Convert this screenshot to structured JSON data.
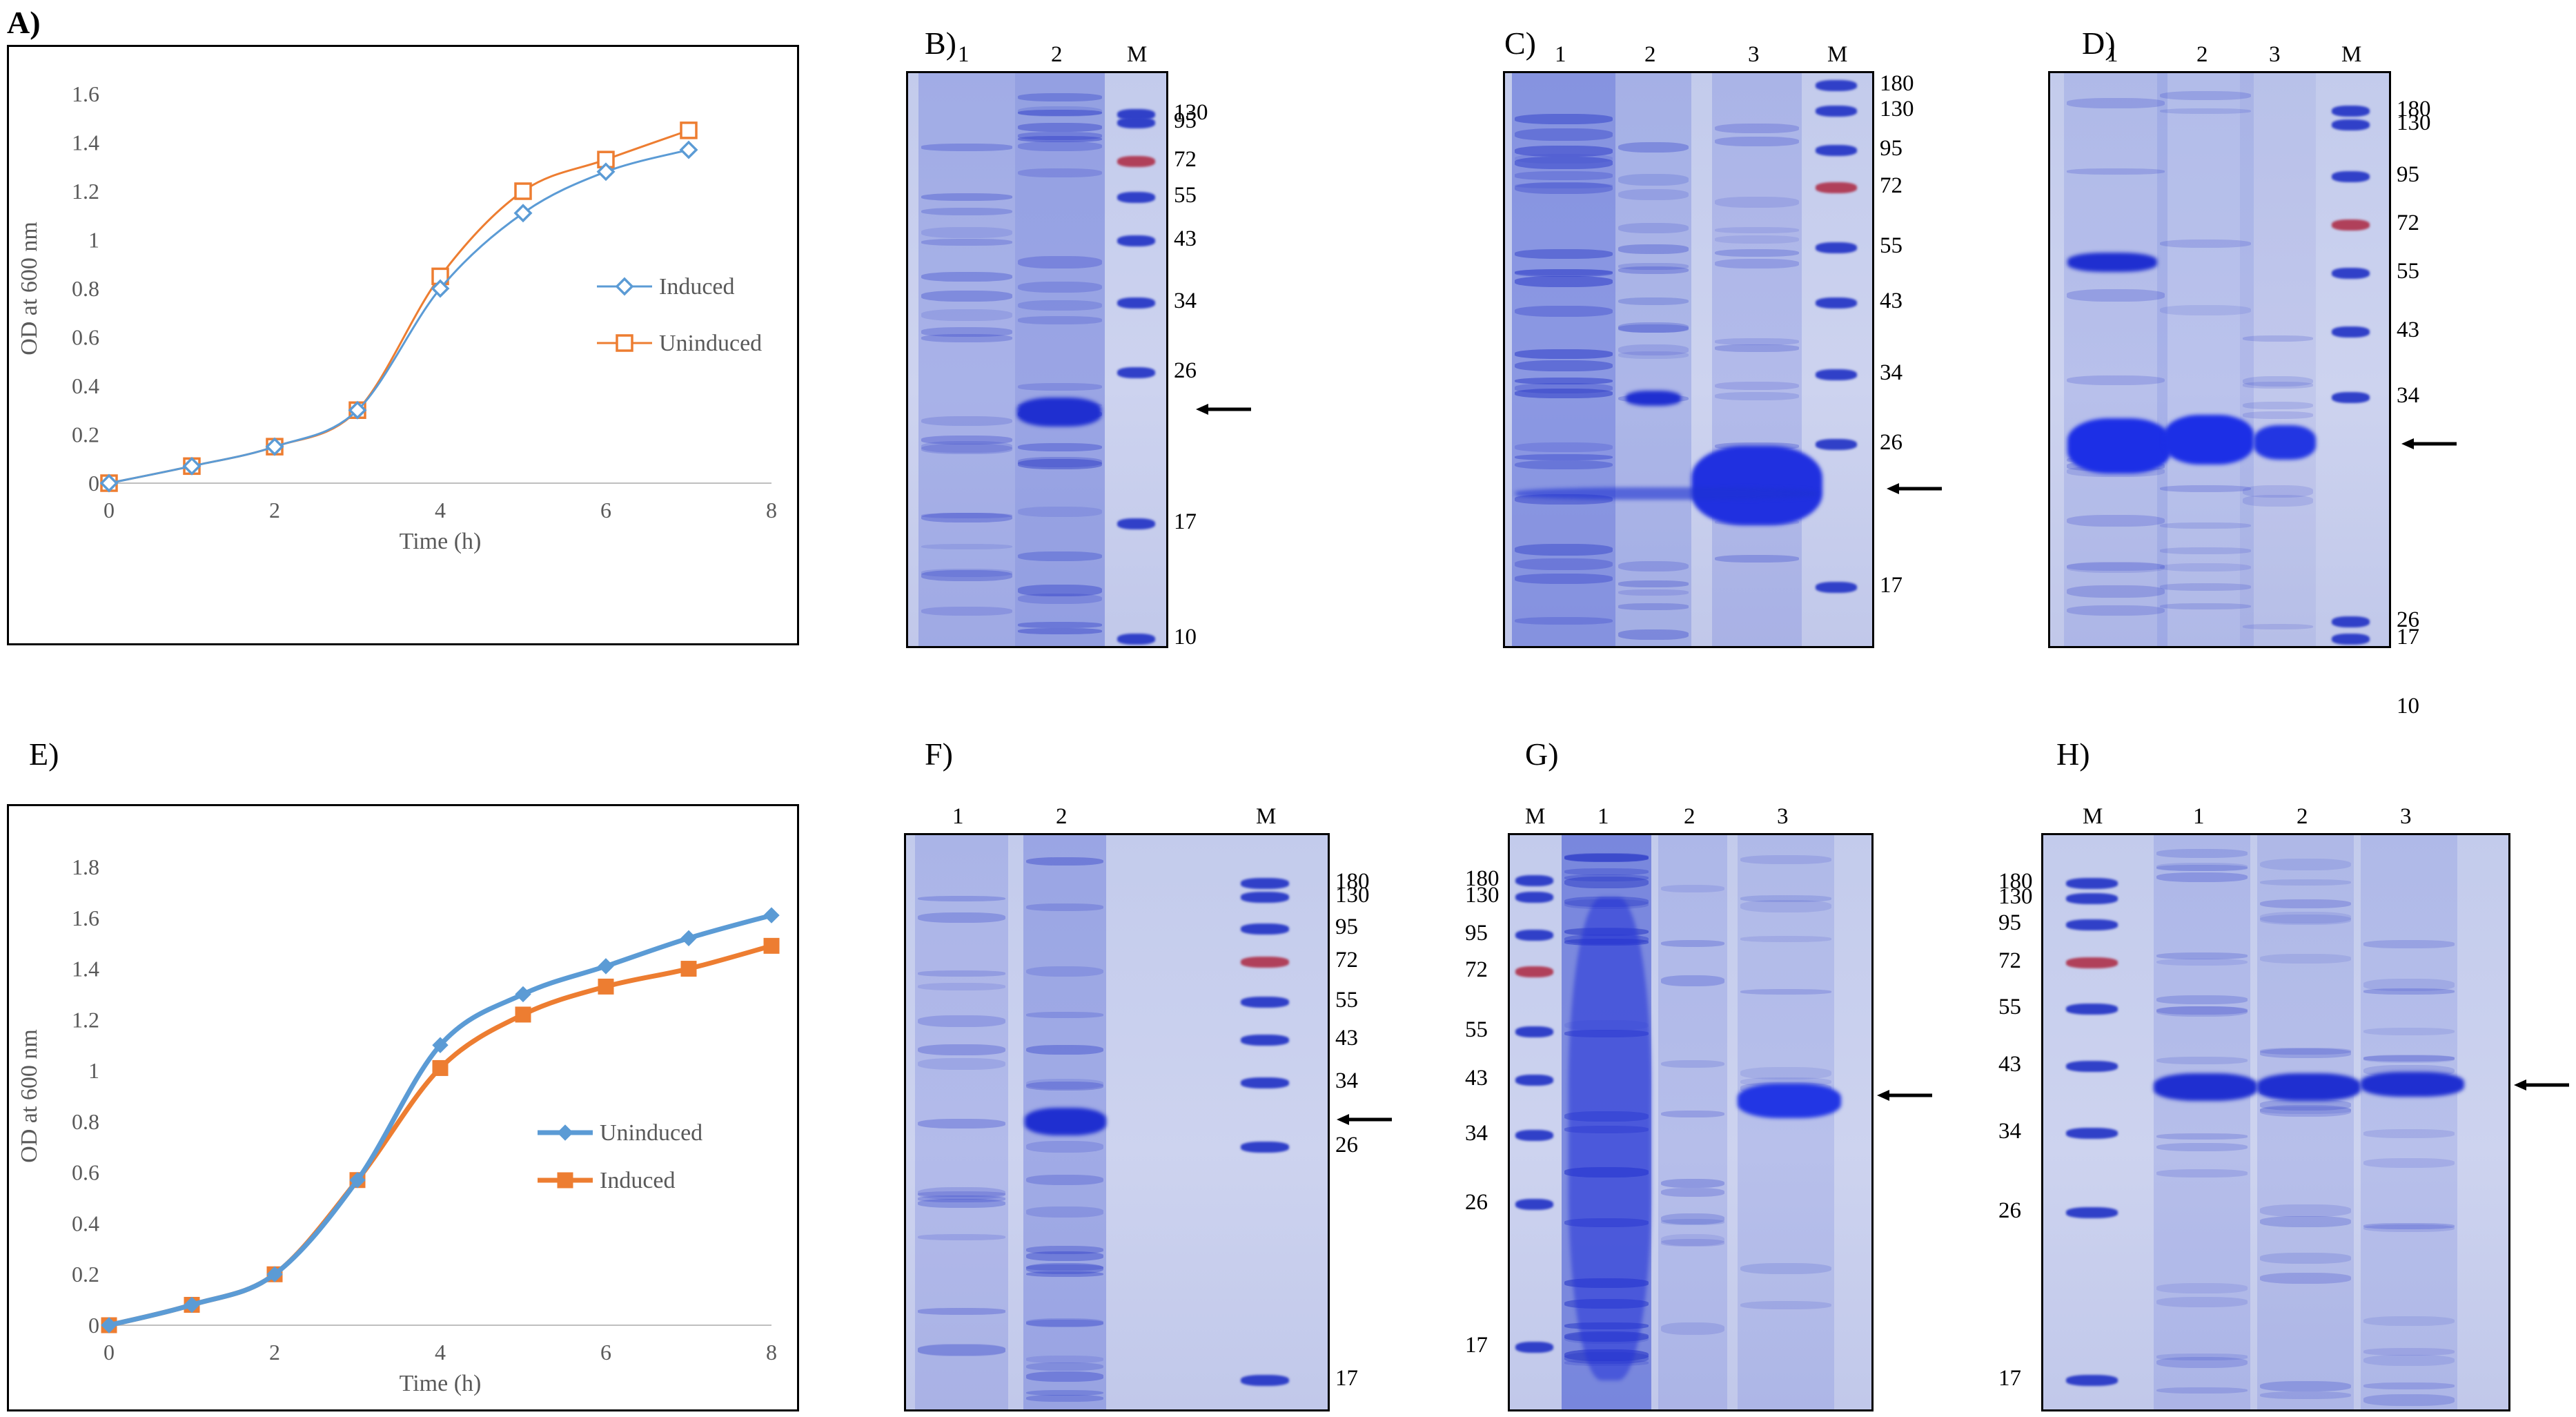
{
  "panels": [
    {
      "id": "A",
      "letter": "A)"
    },
    {
      "id": "B",
      "letter": "B)",
      "lanes": [
        "1",
        "2",
        "M"
      ],
      "markers": [
        "130",
        "95",
        "72",
        "55",
        "43",
        "34",
        "26",
        "17",
        "10"
      ]
    },
    {
      "id": "C",
      "letter": "C)",
      "lanes": [
        "1",
        "2",
        "3",
        "M"
      ],
      "markers": [
        "180",
        "130",
        "95",
        "72",
        "55",
        "43",
        "34",
        "26",
        "17"
      ]
    },
    {
      "id": "D",
      "letter": "D)",
      "lanes": [
        "1",
        "2",
        "3",
        "M"
      ],
      "markers": [
        "180",
        "130",
        "95",
        "72",
        "55",
        "43",
        "34",
        "26",
        "17",
        "10"
      ]
    },
    {
      "id": "E",
      "letter": "E)"
    },
    {
      "id": "F",
      "letter": "F)",
      "lanes": [
        "1",
        "2",
        "M"
      ],
      "markers": [
        "180",
        "130",
        "95",
        "72",
        "55",
        "43",
        "34",
        "26",
        "17"
      ]
    },
    {
      "id": "G",
      "letter": "G)",
      "lanes": [
        "M",
        "1",
        "2",
        "3"
      ],
      "markers": [
        "180",
        "130",
        "95",
        "72",
        "55",
        "43",
        "34",
        "26",
        "17"
      ]
    },
    {
      "id": "H",
      "letter": "H)",
      "lanes": [
        "M",
        "1",
        "2",
        "3"
      ],
      "markers": [
        "180",
        "130",
        "95",
        "72",
        "55",
        "43",
        "34",
        "26",
        "17"
      ]
    }
  ],
  "colors": {
    "induced_A": "#5B9BD5",
    "uninduced_A": "#ED7D31",
    "uninduced_E": "#5B9BD5",
    "induced_E": "#ED7D31",
    "gel_background": "#c9d0ec",
    "stain": "#3a4ed0"
  },
  "chart_data": [
    {
      "panel": "A",
      "type": "line",
      "xlabel": "Time (h)",
      "ylabel": "OD at 600 nm",
      "xlim": [
        0,
        8
      ],
      "ylim": [
        0,
        1.6
      ],
      "xticks": [
        "0",
        "2",
        "4",
        "6",
        "8"
      ],
      "yticks": [
        "0",
        "0.2",
        "0.4",
        "0.6",
        "0.8",
        "1",
        "1.2",
        "1.4",
        "1.6"
      ],
      "grid": false,
      "legend": "right",
      "series": [
        {
          "name": "Induced",
          "marker": "open-diamond",
          "x": [
            0,
            1,
            2,
            3,
            4,
            5,
            6,
            7
          ],
          "y": [
            0,
            0.07,
            0.15,
            0.3,
            0.8,
            1.11,
            1.28,
            1.37
          ]
        },
        {
          "name": "Uninduced",
          "marker": "open-square",
          "x": [
            0,
            1,
            2,
            3,
            4,
            5,
            6,
            7
          ],
          "y": [
            0,
            0.07,
            0.15,
            0.3,
            0.85,
            1.2,
            1.33,
            1.45
          ]
        }
      ]
    },
    {
      "panel": "E",
      "type": "line",
      "xlabel": "Time (h)",
      "ylabel": "OD at 600 nm",
      "xlim": [
        0,
        8
      ],
      "ylim": [
        0,
        1.8
      ],
      "xticks": [
        "0",
        "2",
        "4",
        "6",
        "8"
      ],
      "yticks": [
        "0",
        "0.2",
        "0.4",
        "0.6",
        "0.8",
        "1",
        "1.2",
        "1.4",
        "1.6",
        "1.8"
      ],
      "grid": false,
      "legend": "right",
      "series": [
        {
          "name": "Uninduced",
          "marker": "filled-diamond",
          "x": [
            0,
            1,
            2,
            3,
            4,
            5,
            6,
            7,
            8
          ],
          "y": [
            0,
            0.08,
            0.2,
            0.57,
            1.1,
            1.3,
            1.41,
            1.52,
            1.61
          ]
        },
        {
          "name": "Induced",
          "marker": "filled-square",
          "x": [
            0,
            1,
            2,
            3,
            4,
            5,
            6,
            7,
            8
          ],
          "y": [
            0,
            0.08,
            0.2,
            0.57,
            1.01,
            1.22,
            1.33,
            1.4,
            1.49
          ]
        }
      ]
    }
  ]
}
